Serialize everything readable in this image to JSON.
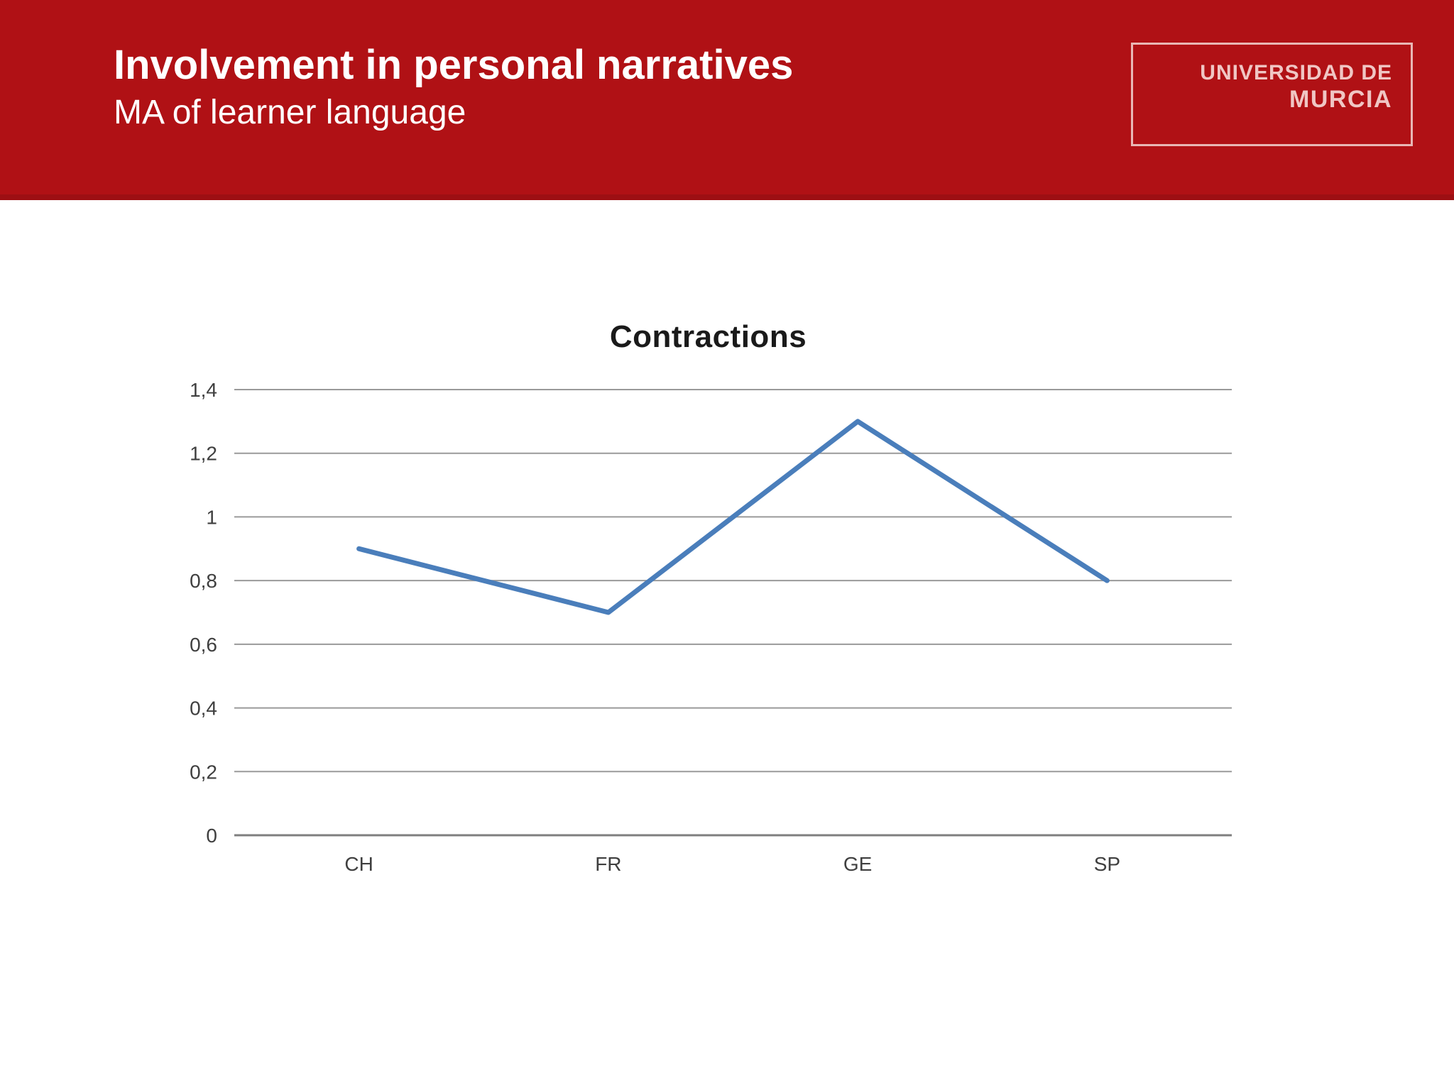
{
  "header": {
    "title": "Involvement in personal narratives",
    "subtitle": "MA of learner language",
    "banner_color": "#B01115",
    "banner_edge_color": "#9D0F13",
    "text_color": "#FFFFFF",
    "logo": {
      "line1": "UNIVERSIDAD DE",
      "line2": "MURCIA",
      "border_color": "#E9B7B5",
      "text_color": "#F0C6C4"
    }
  },
  "chart_data": {
    "type": "line",
    "title": "Contractions",
    "categories": [
      "CH",
      "FR",
      "GE",
      "SP"
    ],
    "series": [
      {
        "name": "Contractions",
        "values": [
          0.9,
          0.7,
          1.3,
          0.8
        ]
      }
    ],
    "xlabel": "",
    "ylabel": "",
    "ylim": [
      0,
      1.4
    ],
    "ytick_step": 0.2,
    "ytick_labels": [
      "0",
      "0,2",
      "0,4",
      "0,6",
      "0,8",
      "1",
      "1,2",
      "1,4"
    ],
    "decimal_separator": ",",
    "grid": true,
    "legend_position": "none",
    "line_color": "#4A7EBB",
    "line_width": 7,
    "gridline_color": "#9A9A9A",
    "axis_line_color": "#7F7F7F",
    "label_color": "#3F3F3F",
    "title_color": "#1A1A1A"
  }
}
